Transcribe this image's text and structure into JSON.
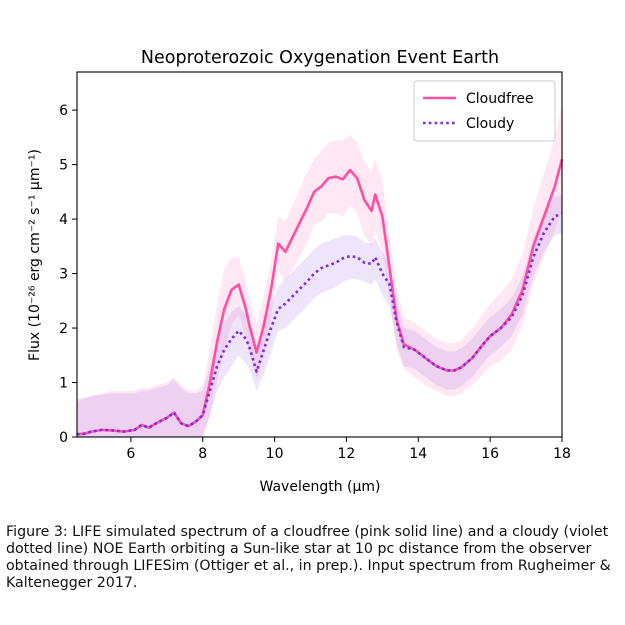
{
  "chart_data": {
    "type": "line",
    "title": "Neoproterozoic Oxygenation Event Earth",
    "xlabel": "Wavelength (μm)",
    "ylabel": "Flux (10⁻²⁶ erg cm⁻² s⁻¹ μm⁻¹)",
    "xlim": [
      4.5,
      18
    ],
    "ylim": [
      0,
      6.7
    ],
    "xticks": [
      6,
      8,
      10,
      12,
      14,
      16,
      18
    ],
    "yticks": [
      0,
      1,
      2,
      3,
      4,
      5,
      6
    ],
    "legend_position": "top-right",
    "grid": false,
    "x": [
      4.5,
      4.7,
      4.9,
      5.2,
      5.5,
      5.8,
      6.1,
      6.3,
      6.5,
      6.7,
      7.0,
      7.2,
      7.4,
      7.6,
      7.8,
      8.0,
      8.2,
      8.4,
      8.6,
      8.8,
      9.0,
      9.2,
      9.3,
      9.5,
      9.7,
      9.9,
      10.1,
      10.3,
      10.6,
      10.9,
      11.1,
      11.3,
      11.5,
      11.7,
      11.9,
      12.1,
      12.3,
      12.5,
      12.7,
      12.8,
      13.0,
      13.2,
      13.4,
      13.6,
      13.9,
      14.2,
      14.5,
      14.8,
      15.0,
      15.2,
      15.5,
      15.8,
      16.0,
      16.3,
      16.6,
      16.9,
      17.2,
      17.5,
      17.8,
      18.0
    ],
    "series": [
      {
        "name": "Cloudfree",
        "color": "#ff4fa3",
        "style": "solid",
        "values": [
          0.05,
          0.06,
          0.1,
          0.13,
          0.12,
          0.1,
          0.13,
          0.22,
          0.17,
          0.25,
          0.35,
          0.45,
          0.25,
          0.2,
          0.28,
          0.4,
          1.0,
          1.75,
          2.35,
          2.7,
          2.8,
          2.35,
          2.05,
          1.55,
          2.05,
          2.7,
          3.55,
          3.4,
          3.8,
          4.2,
          4.5,
          4.6,
          4.75,
          4.78,
          4.73,
          4.9,
          4.75,
          4.35,
          4.15,
          4.45,
          4.05,
          3.1,
          2.15,
          1.7,
          1.6,
          1.45,
          1.3,
          1.22,
          1.22,
          1.28,
          1.45,
          1.7,
          1.85,
          2.0,
          2.25,
          2.7,
          3.5,
          4.05,
          4.6,
          5.1
        ],
        "upper": [
          0.65,
          0.7,
          0.75,
          0.8,
          0.85,
          0.85,
          0.85,
          0.9,
          0.9,
          0.95,
          1.0,
          1.1,
          0.95,
          0.85,
          0.85,
          0.95,
          1.6,
          2.45,
          3.1,
          3.3,
          3.3,
          2.85,
          2.55,
          2.05,
          2.6,
          3.2,
          4.05,
          3.95,
          4.4,
          4.85,
          5.1,
          5.25,
          5.4,
          5.45,
          5.45,
          5.55,
          5.4,
          5.05,
          4.85,
          5.1,
          4.7,
          3.65,
          2.75,
          2.2,
          2.1,
          1.95,
          1.8,
          1.72,
          1.72,
          1.78,
          2.0,
          2.25,
          2.45,
          2.65,
          2.9,
          3.35,
          4.2,
          4.85,
          5.5,
          6.1
        ],
        "lower": [
          0.0,
          0.0,
          0.0,
          0.0,
          0.0,
          0.0,
          0.0,
          0.0,
          0.0,
          0.0,
          0.0,
          0.0,
          0.0,
          0.0,
          0.0,
          0.0,
          0.4,
          1.05,
          1.6,
          2.05,
          2.25,
          1.85,
          1.55,
          1.05,
          1.5,
          2.2,
          3.05,
          2.85,
          3.2,
          3.55,
          3.9,
          3.95,
          4.1,
          4.1,
          4.05,
          4.25,
          4.1,
          3.7,
          3.5,
          3.8,
          3.4,
          2.55,
          1.6,
          1.25,
          1.1,
          0.95,
          0.85,
          0.75,
          0.75,
          0.8,
          0.95,
          1.15,
          1.3,
          1.4,
          1.6,
          2.05,
          2.8,
          3.3,
          3.8,
          4.2
        ]
      },
      {
        "name": "Cloudy",
        "color": "#7b2be2",
        "style": "dotted",
        "values": [
          0.05,
          0.06,
          0.1,
          0.13,
          0.12,
          0.1,
          0.13,
          0.22,
          0.17,
          0.25,
          0.35,
          0.45,
          0.25,
          0.2,
          0.28,
          0.4,
          0.85,
          1.3,
          1.6,
          1.8,
          1.95,
          1.8,
          1.65,
          1.2,
          1.6,
          2.0,
          2.35,
          2.45,
          2.65,
          2.85,
          3.0,
          3.1,
          3.15,
          3.2,
          3.28,
          3.32,
          3.3,
          3.2,
          3.18,
          3.3,
          3.0,
          2.8,
          2.1,
          1.65,
          1.6,
          1.45,
          1.3,
          1.22,
          1.22,
          1.28,
          1.45,
          1.7,
          1.85,
          2.0,
          2.2,
          2.6,
          3.3,
          3.75,
          4.05,
          4.1
        ],
        "upper": [
          0.7,
          0.72,
          0.75,
          0.78,
          0.8,
          0.8,
          0.8,
          0.85,
          0.85,
          0.9,
          0.95,
          1.05,
          0.9,
          0.8,
          0.8,
          0.85,
          1.3,
          1.75,
          2.1,
          2.3,
          2.4,
          2.25,
          2.05,
          1.6,
          2.05,
          2.45,
          2.75,
          2.9,
          3.1,
          3.3,
          3.45,
          3.55,
          3.6,
          3.65,
          3.7,
          3.7,
          3.68,
          3.58,
          3.55,
          3.65,
          3.4,
          3.2,
          2.5,
          2.0,
          1.95,
          1.8,
          1.65,
          1.57,
          1.57,
          1.63,
          1.8,
          2.05,
          2.2,
          2.35,
          2.55,
          2.95,
          3.65,
          4.1,
          4.4,
          4.45
        ],
        "lower": [
          0.0,
          0.0,
          0.0,
          0.0,
          0.0,
          0.0,
          0.0,
          0.0,
          0.0,
          0.0,
          0.0,
          0.0,
          0.0,
          0.0,
          0.0,
          0.0,
          0.4,
          0.85,
          1.1,
          1.3,
          1.5,
          1.35,
          1.25,
          0.85,
          1.15,
          1.55,
          1.95,
          2.0,
          2.2,
          2.4,
          2.55,
          2.65,
          2.7,
          2.75,
          2.85,
          2.9,
          2.9,
          2.85,
          2.8,
          2.9,
          2.6,
          2.4,
          1.7,
          1.3,
          1.25,
          1.1,
          0.95,
          0.87,
          0.87,
          0.93,
          1.1,
          1.35,
          1.5,
          1.65,
          1.85,
          2.25,
          2.95,
          3.4,
          3.7,
          3.75
        ]
      }
    ]
  },
  "caption": "Figure 3: LIFE simulated spectrum of a cloudfree (pink solid line) and a cloudy (violet dotted line) NOE Earth orbiting a Sun-like star at 10 pc distance from the observer obtained through LIFESim (Ottiger et al., in prep.). Input spectrum from Rugheimer & Kaltenegger 2017."
}
